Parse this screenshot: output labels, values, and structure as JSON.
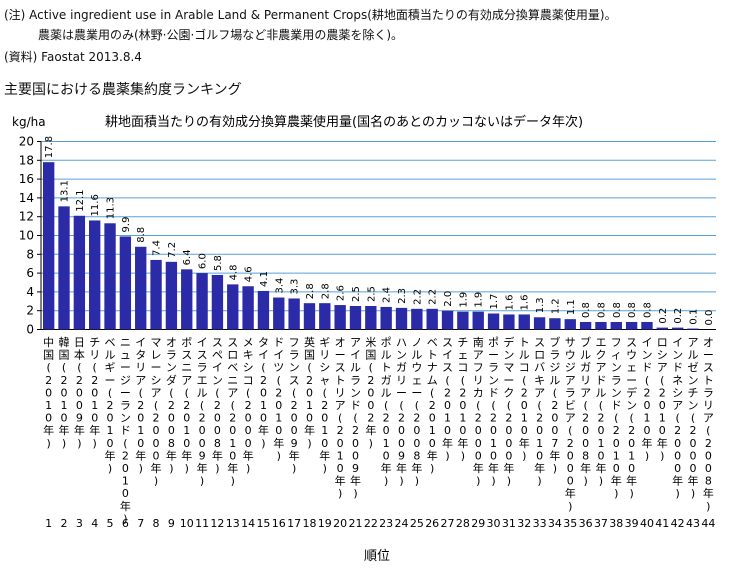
{
  "notes": {
    "line1": "(注) Active ingredient use in Arable Land & Permanent Crops(耕地面積当たりの有効成分換算農薬使用量)。",
    "line2": "農薬は農業用のみ(林野·公園·ゴルフ場など非農業用の農薬を除く)。",
    "source": "(資料) Faostat 2013.8.4"
  },
  "heading": "主要国における農薬集約度ランキング",
  "colors": {
    "bar": "#2b2ba8",
    "gridline": "#5aa0d8",
    "axis": "#000000"
  },
  "chart_data": {
    "type": "bar",
    "title": "耕地面積当たりの有効成分換算農薬使用量(国名のあとのカッコないはデータ年次)",
    "ylabel": "kg/ha",
    "xlabel": "順位",
    "ylim": [
      0,
      20
    ],
    "yticks": [
      "0",
      "2",
      "4",
      "6",
      "8",
      "10",
      "12",
      "14",
      "16",
      "18",
      "20"
    ],
    "grid": true,
    "categories": [
      "中国(2010年)",
      "韓国(2010年)",
      "日本(2009年)",
      "チリ(2010年)",
      "ベルギー(2010年)",
      "ニュージーランド(2010年)",
      "イタリア(2010年)",
      "マレーシア(2000年)",
      "オランダ(2008年)",
      "ボスニア(2010年)",
      "イスラエル(2009年)",
      "スペイン(2008年)",
      "スロベニア(2010年)",
      "メキシコ(2000年)",
      "タイ(2010年)",
      "ドイツ(2010年)",
      "フランス(2009年)",
      "英国(2010年)",
      "ギリシャ(2010年)",
      "オーストリア(2010年)",
      "アイルランド(2009年)",
      "米国(2002年)",
      "ポルトガル(2010年)",
      "ハンガリー(2009年)",
      "ノルウェー(2008年)",
      "ベトナム(2010年)",
      "スイス(2010年)",
      "チェコ(2010年)",
      "南アフリカ(2000年)",
      "ポーランド(2010年)",
      "デンマーク(2000年)",
      "トルコ(2010年)",
      "スロバキア(2010年)",
      "ブラジル(2007年)",
      "サウジアラビア(2000年)",
      "ブルガリア(2008年)",
      "エクアドル(2010年)",
      "フィンランド(2010年)",
      "スウェーデン(2010年)",
      "インド(2010年)",
      "ロシア(2010年)",
      "インドネシア(2000年)",
      "アルゼンチン(2000年)",
      "オーストラリア(2008年)"
    ],
    "labels_vertical": [
      [
        "中",
        "国",
        "(",
        "2",
        "0",
        "1",
        "0",
        "年",
        ")"
      ],
      [
        "韓",
        "国",
        "(",
        "2",
        "0",
        "1",
        "0",
        "年",
        ")"
      ],
      [
        "日",
        "本",
        "(",
        "2",
        "0",
        "0",
        "9",
        "年",
        ")"
      ],
      [
        "チ",
        "リ",
        "(",
        "2",
        "0",
        "1",
        "0",
        "年",
        ")"
      ],
      [
        "ベ",
        "ル",
        "ギ",
        "ー",
        "(",
        "2",
        "0",
        "1",
        "0",
        "年",
        ")"
      ],
      [
        "ニ",
        "ュ",
        "ー",
        "ジ",
        "ー",
        "ラ",
        "ン",
        "ド",
        "(",
        "2",
        "0",
        "1",
        "0",
        "年",
        ")"
      ],
      [
        "イ",
        "タ",
        "リ",
        "ア",
        "(",
        "2",
        "0",
        "1",
        "0",
        "年",
        ")"
      ],
      [
        "マ",
        "レ",
        "ー",
        "シ",
        "ア",
        "(",
        "2",
        "0",
        "0",
        "0",
        "年",
        ")"
      ],
      [
        "オ",
        "ラ",
        "ン",
        "ダ",
        "(",
        "2",
        "0",
        "0",
        "8",
        "年",
        ")"
      ],
      [
        "ボ",
        "ス",
        "ニ",
        "ア",
        "(",
        "2",
        "0",
        "1",
        "0",
        "年",
        ")"
      ],
      [
        "イ",
        "ス",
        "ラ",
        "エ",
        "ル",
        "(",
        "2",
        "0",
        "0",
        "9",
        "年",
        ")"
      ],
      [
        "ス",
        "ペ",
        "イ",
        "ン",
        "(",
        "2",
        "0",
        "0",
        "8",
        "年",
        ")"
      ],
      [
        "ス",
        "ロ",
        "ベ",
        "ニ",
        "ア",
        "(",
        "2",
        "0",
        "1",
        "0",
        "年",
        ")"
      ],
      [
        "メ",
        "キ",
        "シ",
        "コ",
        "(",
        "2",
        "0",
        "0",
        "0",
        "年",
        ")"
      ],
      [
        "タ",
        "イ",
        "(",
        "2",
        "0",
        "1",
        "0",
        "年",
        ")"
      ],
      [
        "ド",
        "イ",
        "ツ",
        "(",
        "2",
        "0",
        "1",
        "0",
        "年",
        ")"
      ],
      [
        "フ",
        "ラ",
        "ン",
        "ス",
        "(",
        "2",
        "0",
        "0",
        "9",
        "年",
        ")"
      ],
      [
        "英",
        "国",
        "(",
        "2",
        "0",
        "1",
        "0",
        "年",
        ")"
      ],
      [
        "ギ",
        "リ",
        "シ",
        "ャ",
        "(",
        "2",
        "0",
        "1",
        "0",
        "年",
        ")"
      ],
      [
        "オ",
        "ー",
        "ス",
        "ト",
        "リ",
        "ア",
        "(",
        "2",
        "0",
        "1",
        "0",
        "年",
        ")"
      ],
      [
        "ア",
        "イ",
        "ル",
        "ラ",
        "ン",
        "ド",
        "(",
        "2",
        "0",
        "0",
        "9",
        "年",
        ")"
      ],
      [
        "米",
        "国",
        "(",
        "2",
        "0",
        "0",
        "2",
        "年",
        ")"
      ],
      [
        "ポ",
        "ル",
        "ト",
        "ガ",
        "ル",
        "(",
        "2",
        "0",
        "1",
        "0",
        "年",
        ")"
      ],
      [
        "ハ",
        "ン",
        "ガ",
        "リ",
        "ー",
        "(",
        "2",
        "0",
        "0",
        "9",
        "年",
        ")"
      ],
      [
        "ノ",
        "ル",
        "ウ",
        "ェ",
        "ー",
        "(",
        "2",
        "0",
        "0",
        "8",
        "年",
        ")"
      ],
      [
        "ベ",
        "ト",
        "ナ",
        "ム",
        "(",
        "2",
        "0",
        "1",
        "0",
        "年",
        ")"
      ],
      [
        "ス",
        "イ",
        "ス",
        "(",
        "2",
        "0",
        "1",
        "0",
        "年",
        ")"
      ],
      [
        "チ",
        "ェ",
        "コ",
        "(",
        "2",
        "0",
        "1",
        "0",
        "年",
        ")"
      ],
      [
        "南",
        "ア",
        "フ",
        "リ",
        "カ",
        "(",
        "2",
        "0",
        "0",
        "0",
        "年",
        ")"
      ],
      [
        "ポ",
        "ー",
        "ラ",
        "ン",
        "ド",
        "(",
        "2",
        "0",
        "1",
        "0",
        "年",
        ")"
      ],
      [
        "デ",
        "ン",
        "マ",
        "ー",
        "ク",
        "(",
        "2",
        "0",
        "0",
        "0",
        "年",
        ")"
      ],
      [
        "ト",
        "ル",
        "コ",
        "(",
        "2",
        "0",
        "1",
        "0",
        "年",
        ")"
      ],
      [
        "ス",
        "ロ",
        "バ",
        "キ",
        "ア",
        "(",
        "2",
        "0",
        "1",
        "0",
        "年",
        ")"
      ],
      [
        "ブ",
        "ラ",
        "ジ",
        "ル",
        "(",
        "2",
        "0",
        "0",
        "7",
        "年",
        ")"
      ],
      [
        "サ",
        "ウ",
        "ジ",
        "ア",
        "ラ",
        "ビ",
        "ア",
        "(",
        "2",
        "0",
        "0",
        "0",
        "年",
        ")"
      ],
      [
        "ブ",
        "ル",
        "ガ",
        "リ",
        "ア",
        "(",
        "2",
        "0",
        "0",
        "8",
        "年",
        ")"
      ],
      [
        "エ",
        "ク",
        "ア",
        "ド",
        "ル",
        "(",
        "2",
        "0",
        "1",
        "0",
        "年",
        ")"
      ],
      [
        "フ",
        "ィ",
        "ン",
        "ラ",
        "ン",
        "ド",
        "(",
        "2",
        "0",
        "1",
        "0",
        "年",
        ")"
      ],
      [
        "ス",
        "ウ",
        "ェ",
        "ー",
        "デ",
        "ン",
        "(",
        "2",
        "0",
        "1",
        "0",
        "年",
        ")"
      ],
      [
        "イ",
        "ン",
        "ド",
        "(",
        "2",
        "0",
        "1",
        "0",
        "年",
        ")"
      ],
      [
        "ロ",
        "シ",
        "ア",
        "(",
        "2",
        "0",
        "1",
        "0",
        "年",
        ")"
      ],
      [
        "イ",
        "ン",
        "ド",
        "ネ",
        "シ",
        "ア",
        "(",
        "2",
        "0",
        "0",
        "0",
        "年",
        ")"
      ],
      [
        "ア",
        "ル",
        "ゼ",
        "ン",
        "チ",
        "ン",
        "(",
        "2",
        "0",
        "0",
        "0",
        "年",
        ")"
      ],
      [
        "オ",
        "ー",
        "ス",
        "ト",
        "ラ",
        "リ",
        "ア",
        "(",
        "2",
        "0",
        "0",
        "8",
        "年",
        ")"
      ]
    ],
    "ranks": [
      "1",
      "2",
      "3",
      "4",
      "5",
      "6",
      "7",
      "8",
      "9",
      "10",
      "11",
      "12",
      "13",
      "14",
      "15",
      "16",
      "17",
      "18",
      "19",
      "20",
      "21",
      "22",
      "23",
      "24",
      "25",
      "26",
      "27",
      "28",
      "29",
      "30",
      "31",
      "32",
      "33",
      "34",
      "35",
      "36",
      "37",
      "38",
      "39",
      "40",
      "41",
      "42",
      "43",
      "44"
    ],
    "values": [
      17.8,
      13.1,
      12.1,
      11.6,
      11.3,
      9.9,
      8.8,
      7.4,
      7.2,
      6.4,
      6.0,
      5.8,
      4.8,
      4.6,
      4.1,
      3.4,
      3.3,
      2.8,
      2.8,
      2.6,
      2.5,
      2.5,
      2.4,
      2.3,
      2.2,
      2.2,
      2.0,
      1.9,
      1.9,
      1.7,
      1.6,
      1.6,
      1.3,
      1.2,
      1.1,
      0.8,
      0.8,
      0.8,
      0.8,
      0.8,
      0.2,
      0.2,
      0.1,
      0.0
    ],
    "value_labels": [
      "17.8",
      "13.1",
      "12.1",
      "11.6",
      "11.3",
      "9.9",
      "8.8",
      "7.4",
      "7.2",
      "6.4",
      "6.0",
      "5.8",
      "4.8",
      "4.6",
      "4.1",
      "3.4",
      "3.3",
      "2.8",
      "2.8",
      "2.6",
      "2.5",
      "2.5",
      "2.4",
      "2.3",
      "2.2",
      "2.2",
      "2.0",
      "1.9",
      "1.9",
      "1.7",
      "1.6",
      "1.6",
      "1.3",
      "1.2",
      "1.1",
      "0.8",
      "0.8",
      "0.8",
      "0.8",
      "0.8",
      "0.2",
      "0.2",
      "0.1",
      "0.0"
    ]
  }
}
